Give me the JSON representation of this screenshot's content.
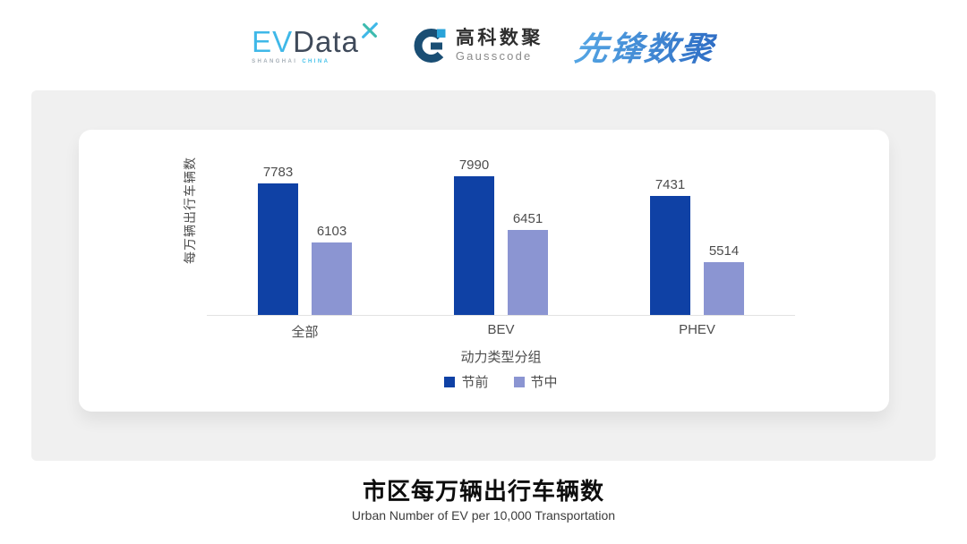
{
  "header": {
    "evdata": {
      "ev": "EV",
      "data": "Data",
      "shanghai": "SHANGHAI",
      "china": "CHINA",
      "accent_color": "#3FB8E8",
      "dark_color": "#3F4A5A"
    },
    "gausscode": {
      "cn": "高科数聚",
      "en": "Gausscode",
      "mark_dark_color": "#1A4E74",
      "mark_light_color": "#29A3D9"
    },
    "pioneer": {
      "text": "先锋数聚",
      "color": "#3A7CD0"
    }
  },
  "chart_data": {
    "type": "bar",
    "title": "市区每万辆出行车辆数",
    "subtitle": "Urban Number of EV per 10,000 Transportation",
    "categories": [
      "全部",
      "BEV",
      "PHEV"
    ],
    "series": [
      {
        "name": "节前",
        "color": "#0F41A5",
        "values": [
          7783,
          7990,
          7431
        ]
      },
      {
        "name": "节中",
        "color": "#8B95D2",
        "values": [
          6103,
          6451,
          5514
        ]
      }
    ],
    "xlabel": "动力类型分组",
    "ylabel": "每万辆出行车辆数",
    "ylim": [
      4000,
      8200
    ],
    "grid": false,
    "legend_position": "bottom",
    "value_labels": true,
    "axis_line_color": "#E2E2E2",
    "label_color": "#4D4D4D"
  }
}
